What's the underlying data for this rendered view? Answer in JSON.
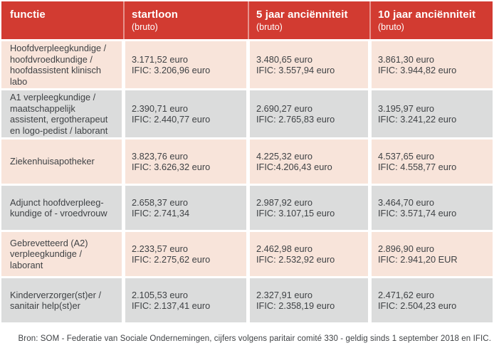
{
  "chart_data": {
    "type": "table",
    "columns": [
      {
        "label": "functie",
        "sub": ""
      },
      {
        "label": "startloon",
        "sub": "(bruto)"
      },
      {
        "label": "5 jaar anciënniteit",
        "sub": "(bruto)"
      },
      {
        "label": "10 jaar anciënniteit",
        "sub": "(bruto)"
      }
    ],
    "rows": [
      {
        "functie": "Hoofdverpleegkundige / hoofdvroedkundige / hoofdassistent klinisch labo",
        "start_1": "3.171,52 euro",
        "start_2": "IFIC: 3.206,96 euro",
        "jaar5_1": "3.480,65 euro",
        "jaar5_2": "IFIC: 3.557,94 euro",
        "jaar10_1": "3.861,30 euro",
        "jaar10_2": "IFIC: 3.944,82 euro"
      },
      {
        "functie": "A1 verpleegkundige / maatschappelijk assistent, ergotherapeut en logo-pedist / laborant",
        "start_1": "2.390,71 euro",
        "start_2": "IFIC: 2.440,77 euro",
        "jaar5_1": "2.690,27 euro",
        "jaar5_2": "IFIC: 2.765,83 euro",
        "jaar10_1": "3.195,97 euro",
        "jaar10_2": "IFIC: 3.241,22 euro"
      },
      {
        "functie": "Ziekenhuisapotheker",
        "start_1": "3.823,76 euro",
        "start_2": "IFIC: 3.626,32 euro",
        "jaar5_1": "4.225,32 euro",
        "jaar5_2": "IFIC:4.206,43 euro",
        "jaar10_1": "4.537,65 euro",
        "jaar10_2": "IFIC: 4.558,77 euro"
      },
      {
        "functie": "Adjunct hoofdverpleeg-kundige of - vroedvrouw",
        "start_1": "2.658,37 euro",
        "start_2": "IFIC: 2.741,34",
        "jaar5_1": "2.987,92 euro",
        "jaar5_2": "IFIC: 3.107,15 euro",
        "jaar10_1": "3.464,70 euro",
        "jaar10_2": "IFIC: 3.571,74 euro"
      },
      {
        "functie": "Gebrevetteerd (A2) verpleegkundige / laborant",
        "start_1": "2.233,57 euro",
        "start_2": "IFIC: 2.275,62 euro",
        "jaar5_1": "2.462,98 euro",
        "jaar5_2": "IFIC: 2.532,92 euro",
        "jaar10_1": "2.896,90 euro",
        "jaar10_2": "IFIC: 2.941,20 EUR"
      },
      {
        "functie": "Kinderverzorger(st)er / sanitair help(st)er",
        "start_1": "2.105,53 euro",
        "start_2": "IFIC: 2.137,41 euro",
        "jaar5_1": "2.327,91 euro",
        "jaar5_2": "IFIC: 2.358,19 euro",
        "jaar10_1": "2.471,62 euro",
        "jaar10_2": "IFIC: 2.504,23 euro"
      }
    ]
  },
  "footer": {
    "source": "Bron: SOM - Federatie van Sociale Ondernemingen, cijfers volgens paritair comité 330 - geldig sinds 1 september 2018 en IFIC."
  },
  "colors": {
    "header_red": "#d23b31",
    "row_pink": "#f8e4da",
    "row_gray": "#dbdcdc",
    "text": "#3f4245"
  }
}
